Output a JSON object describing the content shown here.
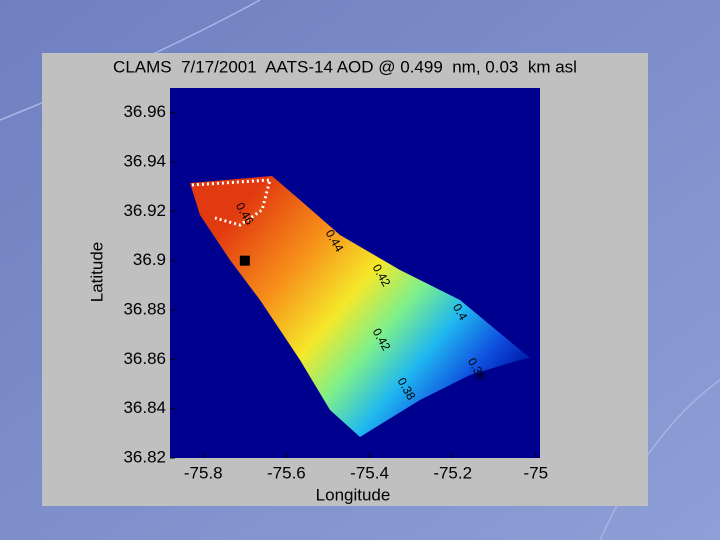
{
  "chart_data": {
    "type": "contour",
    "title": "CLAMS  7/17/2001  AATS-14 AOD @ 0.499  nm, 0.03  km asl",
    "xlabel": "Longitude",
    "ylabel": "Latitude",
    "xlim": [
      -75.88,
      -74.99
    ],
    "ylim": [
      36.82,
      36.97
    ],
    "xticks": [
      -75.8,
      -75.6,
      -75.4,
      -75.2,
      -75
    ],
    "yticks": [
      36.82,
      36.84,
      36.86,
      36.88,
      36.9,
      36.92,
      36.94,
      36.96
    ],
    "contour_labels": [
      {
        "text": "0.46",
        "x": -75.716,
        "y": 36.923
      },
      {
        "text": "0.44",
        "x": -75.5,
        "y": 36.912
      },
      {
        "text": "0.42",
        "x": -75.387,
        "y": 36.898
      },
      {
        "text": "0.42",
        "x": -75.387,
        "y": 36.872
      },
      {
        "text": "0.4",
        "x": -75.194,
        "y": 36.882
      },
      {
        "text": "0.38",
        "x": -75.327,
        "y": 36.852
      },
      {
        "text": "0.36",
        "x": -75.158,
        "y": 36.86
      }
    ],
    "marker": {
      "x": -75.7,
      "y": 36.9
    }
  }
}
